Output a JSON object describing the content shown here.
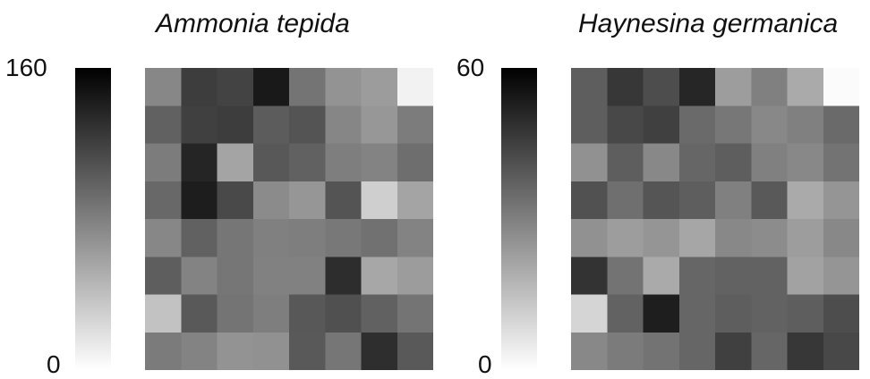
{
  "chart_data": [
    {
      "type": "heatmap",
      "title": "Ammonia tepida",
      "colorbar": {
        "min": 0,
        "max": 160,
        "tick_labels": [
          "160",
          "0"
        ],
        "colors": [
          "#000000",
          "#ffffff"
        ]
      },
      "rows": 8,
      "cols": 8,
      "values": [
        [
          75,
          122,
          118,
          144,
          87,
          68,
          62,
          8
        ],
        [
          99,
          120,
          122,
          102,
          107,
          76,
          65,
          82
        ],
        [
          82,
          137,
          57,
          105,
          99,
          81,
          78,
          91
        ],
        [
          95,
          142,
          114,
          73,
          66,
          107,
          30,
          57
        ],
        [
          75,
          99,
          86,
          80,
          81,
          85,
          89,
          78
        ],
        [
          101,
          78,
          86,
          79,
          79,
          132,
          55,
          62
        ],
        [
          38,
          104,
          87,
          81,
          105,
          110,
          99,
          87
        ],
        [
          83,
          78,
          68,
          69,
          104,
          86,
          131,
          104
        ]
      ]
    },
    {
      "type": "heatmap",
      "title": "Haynesina germanica",
      "colorbar": {
        "min": 0,
        "max": 60,
        "tick_labels": [
          "60",
          "0"
        ],
        "colors": [
          "#000000",
          "#ffffff"
        ]
      },
      "rows": 8,
      "cols": 8,
      "values": [
        [
          38,
          47,
          42,
          51,
          23,
          30,
          20,
          1
        ],
        [
          38,
          43,
          45,
          35,
          32,
          28,
          30,
          35
        ],
        [
          26,
          38,
          28,
          36,
          38,
          30,
          28,
          33
        ],
        [
          41,
          34,
          40,
          38,
          30,
          39,
          20,
          25
        ],
        [
          26,
          23,
          25,
          21,
          28,
          27,
          23,
          28
        ],
        [
          48,
          33,
          20,
          36,
          37,
          37,
          22,
          25
        ],
        [
          10,
          37,
          53,
          36,
          38,
          37,
          38,
          42
        ],
        [
          28,
          31,
          33,
          36,
          45,
          36,
          47,
          43
        ]
      ]
    }
  ]
}
